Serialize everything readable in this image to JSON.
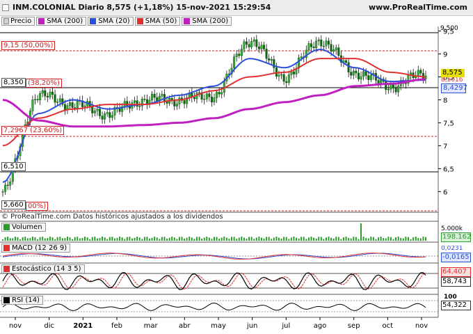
{
  "window": {
    "title": "INM.COLONIAL Diario 8,575 (+1,18%) 15-nov-2021 15:29:54",
    "site": "www.ProRealTime.com"
  },
  "legend_main": [
    {
      "label": "Precio",
      "color": "#2a9d2a"
    },
    {
      "label": "SMA (200)",
      "color": "#c020c0"
    },
    {
      "label": "SMA (20)",
      "color": "#2a4fd8"
    },
    {
      "label": "SMA (50)",
      "color": "#e03030"
    },
    {
      "label": "SMA (200)",
      "color": "#c020c0"
    }
  ],
  "price_axis": {
    "ticks": [
      "9,5",
      "9",
      "8,5",
      "8",
      "7,5",
      "7",
      "6,5",
      "6"
    ],
    "top_partial": "9,500"
  },
  "price_tags": {
    "last": "8,575",
    "last_color": "#e8e000",
    "sma20": "8,4297",
    "sma20_color": "#2a4fd8",
    "sma50_partial": "8,5016"
  },
  "fib_levels": [
    {
      "label": "9,15 (50,00%)",
      "color": "#d02020"
    },
    {
      "label": "8,350",
      "sub": "(38,20%)",
      "color": "#d02020"
    },
    {
      "label": "7,2967 (23,60%)",
      "color": "#d02020"
    },
    {
      "label": "6,510",
      "color": "#000000"
    },
    {
      "label": "5,660",
      "sub": "00%)",
      "color": "#d02020"
    }
  ],
  "copyright": "© ProRealTime.com  Datos históricos ajustados a los dividendos",
  "volume": {
    "label": "Volumen",
    "axis": "5.000k",
    "value": "198.162",
    "color": "#2a9d2a"
  },
  "macd": {
    "label": "MACD (12 26 9)",
    "value": "-0,0165",
    "value2": "0,0231",
    "color": "#2a4fd8"
  },
  "stoch": {
    "label": "Estocástico (14 3 5)",
    "value1": "64,407",
    "value2": "58,743",
    "color1": "#e03030",
    "color2": "#000000"
  },
  "rsi": {
    "label": "RSI (14)",
    "axis": "100",
    "value": "54,322"
  },
  "x_labels": [
    "nov",
    "dic",
    "2021",
    "feb",
    "mar",
    "abr",
    "may",
    "jun",
    "jul",
    "ago",
    "sep",
    "oct",
    "nov"
  ],
  "chart_data": {
    "type": "line",
    "title": "INM.COLONIAL Diario 8,575 (+1,18%) 15-nov-2021 15:29:54",
    "xlabel": "",
    "ylabel": "",
    "x": [
      "nov",
      "dic",
      "2021",
      "feb",
      "mar",
      "abr",
      "may",
      "jun",
      "jul",
      "ago",
      "sep",
      "oct",
      "nov"
    ],
    "ylim": [
      5.55,
      9.6
    ],
    "series": [
      {
        "name": "Precio",
        "values": [
          6.0,
          8.1,
          7.9,
          7.7,
          8.0,
          8.0,
          8.1,
          9.3,
          8.5,
          9.3,
          8.6,
          8.3,
          8.57
        ]
      },
      {
        "name": "SMA (20)",
        "values": [
          6.2,
          7.7,
          8.0,
          7.8,
          7.9,
          8.1,
          8.3,
          8.9,
          8.7,
          9.1,
          8.7,
          8.4,
          8.43
        ]
      },
      {
        "name": "SMA (50)",
        "values": [
          7.0,
          7.6,
          7.8,
          7.9,
          7.9,
          8.0,
          8.2,
          8.5,
          8.6,
          8.9,
          8.9,
          8.6,
          8.5
        ]
      },
      {
        "name": "SMA (200)",
        "values": [
          8.0,
          7.55,
          7.42,
          7.42,
          7.45,
          7.5,
          7.6,
          7.8,
          7.95,
          8.1,
          8.3,
          8.35,
          8.45
        ]
      }
    ]
  }
}
